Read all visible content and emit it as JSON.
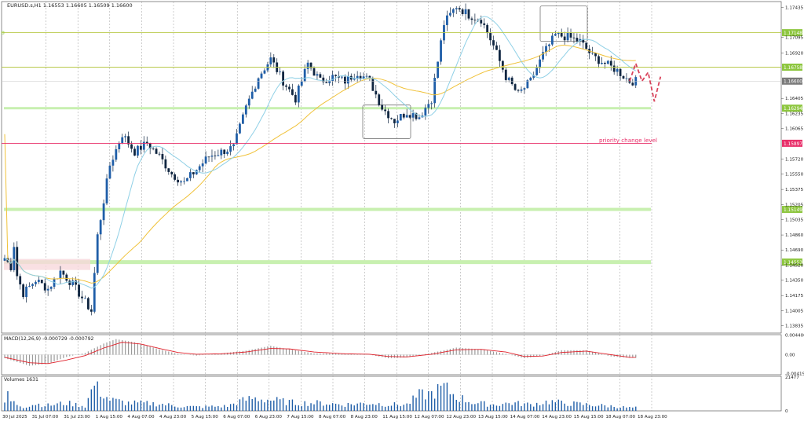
{
  "header": {
    "main_title": "EURUSD.s,H1  1.16553 1.16605 1.16509 1.16600",
    "macd_title": "MACD(12,26,9) -0.000729 -0.000792",
    "volume_title": "Volumes 1631"
  },
  "colors": {
    "background": "#ffffff",
    "grid": "#9a9a9a",
    "bull_candle": "#1f5ea8",
    "bear_candle": "#0f2540",
    "ma_fast": "#8fd0e6",
    "ma_slow": "#f0c23a",
    "level_line": "#8dc63f",
    "zone_fill": "#c8f0b0",
    "priority_line": "#e8306a",
    "projection": "#d9435b",
    "current_price_tag": "#7a7a7a",
    "macd_signal": "#e0202a",
    "macd_hist": "#9a9a9a",
    "volume_bar": "#1f5ea8"
  },
  "chart_data": {
    "type": "candlestick",
    "symbol": "EURUSD.s",
    "timeframe": "H1",
    "ohlc_current": {
      "open": 1.16553,
      "high": 1.16605,
      "low": 1.16509,
      "close": 1.166
    },
    "ylim": [
      1.1375,
      1.175
    ],
    "y_ticks": [
      "1.17435",
      "1.17095",
      "1.16920",
      "1.16405",
      "1.16235",
      "1.16065",
      "1.15720",
      "1.15550",
      "1.15375",
      "1.15205",
      "1.15035",
      "1.14860",
      "1.14690",
      "1.14520",
      "1.14350",
      "1.14175",
      "1.14005",
      "1.13835"
    ],
    "x_ticks": [
      "30 Jul 2025",
      "31 Jul 07:00",
      "31 Jul 23:00",
      "1 Aug 15:00",
      "4 Aug 07:00",
      "4 Aug 23:00",
      "5 Aug 15:00",
      "6 Aug 07:00",
      "6 Aug 23:00",
      "7 Aug 15:00",
      "8 Aug 07:00",
      "8 Aug 23:00",
      "11 Aug 15:00",
      "12 Aug 07:00",
      "12 Aug 23:00",
      "13 Aug 15:00",
      "14 Aug 07:00",
      "14 Aug 23:00",
      "15 Aug 15:00",
      "18 Aug 07:00",
      "18 Aug 23:00"
    ],
    "price_path": [
      [
        0,
        1.146
      ],
      [
        2,
        1.145
      ],
      [
        3,
        1.1475
      ],
      [
        4,
        1.144
      ],
      [
        6,
        1.142
      ],
      [
        10,
        1.1435
      ],
      [
        14,
        1.1425
      ],
      [
        18,
        1.1445
      ],
      [
        22,
        1.143
      ],
      [
        26,
        1.141
      ],
      [
        28,
        1.14
      ],
      [
        30,
        1.1485
      ],
      [
        34,
        1.1565
      ],
      [
        38,
        1.16
      ],
      [
        42,
        1.158
      ],
      [
        46,
        1.159
      ],
      [
        50,
        1.1575
      ],
      [
        54,
        1.1555
      ],
      [
        58,
        1.1545
      ],
      [
        62,
        1.156
      ],
      [
        66,
        1.1575
      ],
      [
        70,
        1.158
      ],
      [
        74,
        1.1585
      ],
      [
        78,
        1.163
      ],
      [
        82,
        1.1665
      ],
      [
        86,
        1.1685
      ],
      [
        90,
        1.166
      ],
      [
        94,
        1.164
      ],
      [
        98,
        1.168
      ],
      [
        102,
        1.166
      ],
      [
        106,
        1.1665
      ],
      [
        110,
        1.166
      ],
      [
        114,
        1.167
      ],
      [
        118,
        1.166
      ],
      [
        122,
        1.163
      ],
      [
        126,
        1.1615
      ],
      [
        130,
        1.1625
      ],
      [
        134,
        1.162
      ],
      [
        138,
        1.164
      ],
      [
        142,
        1.1725
      ],
      [
        146,
        1.1745
      ],
      [
        150,
        1.1735
      ],
      [
        154,
        1.173
      ],
      [
        158,
        1.17
      ],
      [
        162,
        1.1665
      ],
      [
        166,
        1.1645
      ],
      [
        170,
        1.166
      ],
      [
        174,
        1.169
      ],
      [
        178,
        1.1712
      ],
      [
        182,
        1.171
      ],
      [
        186,
        1.1705
      ],
      [
        190,
        1.1688
      ],
      [
        194,
        1.168
      ],
      [
        198,
        1.1672
      ],
      [
        202,
        1.166
      ]
    ],
    "projection_path": [
      [
        202,
        1.166
      ],
      [
        204,
        1.168
      ],
      [
        206,
        1.166
      ],
      [
        208,
        1.167
      ],
      [
        210,
        1.1637
      ],
      [
        212,
        1.1665
      ]
    ],
    "levels": [
      {
        "price": 1.17148,
        "label": "1.17148",
        "kind": "resistance"
      },
      {
        "price": 1.16758,
        "label": "1.16758",
        "kind": "resistance"
      },
      {
        "price": 1.16294,
        "label": "1.16294",
        "kind": "support-zone"
      },
      {
        "price": 1.15897,
        "label": "1.15897",
        "kind": "priority-change"
      },
      {
        "price": 1.15149,
        "label": "1.15149",
        "kind": "support-zone"
      },
      {
        "price": 1.14553,
        "label": "1.14553",
        "kind": "support-zone"
      }
    ],
    "current_price": {
      "price": 1.166,
      "label": "1.16600"
    },
    "annotations": [
      {
        "text": "priority change level"
      }
    ],
    "macd": {
      "y_ticks": [
        "0.004406",
        "0.00",
        "-0.004199"
      ],
      "ylim": [
        -0.0045,
        0.0045
      ],
      "histogram_path": [
        [
          0,
          -0.0008
        ],
        [
          8,
          -0.0025
        ],
        [
          14,
          -0.002
        ],
        [
          20,
          -0.0005
        ],
        [
          26,
          0.0004
        ],
        [
          32,
          0.0025
        ],
        [
          36,
          0.0035
        ],
        [
          42,
          0.0028
        ],
        [
          50,
          0.0012
        ],
        [
          56,
          0.0002
        ],
        [
          62,
          -0.0002
        ],
        [
          70,
          0.0003
        ],
        [
          78,
          0.0009
        ],
        [
          86,
          0.002
        ],
        [
          92,
          0.0012
        ],
        [
          100,
          0.0003
        ],
        [
          110,
          0.0002
        ],
        [
          118,
          0.0
        ],
        [
          124,
          -0.0008
        ],
        [
          130,
          -0.0006
        ],
        [
          138,
          0.0004
        ],
        [
          146,
          0.0016
        ],
        [
          154,
          0.0012
        ],
        [
          162,
          0.0002
        ],
        [
          168,
          -0.0008
        ],
        [
          174,
          -0.0002
        ],
        [
          180,
          0.001
        ],
        [
          188,
          0.001
        ],
        [
          196,
          -0.0004
        ],
        [
          202,
          -0.0007
        ]
      ],
      "signal_path": [
        [
          0,
          -0.0006
        ],
        [
          8,
          -0.0018
        ],
        [
          14,
          -0.002
        ],
        [
          20,
          -0.0012
        ],
        [
          26,
          -0.0002
        ],
        [
          32,
          0.0015
        ],
        [
          38,
          0.0028
        ],
        [
          44,
          0.0024
        ],
        [
          50,
          0.0014
        ],
        [
          56,
          0.0005
        ],
        [
          62,
          0.0001
        ],
        [
          70,
          0.0002
        ],
        [
          78,
          0.0006
        ],
        [
          86,
          0.0014
        ],
        [
          92,
          0.0013
        ],
        [
          100,
          0.0006
        ],
        [
          110,
          0.0002
        ],
        [
          118,
          0.0001
        ],
        [
          124,
          -0.0004
        ],
        [
          130,
          -0.0005
        ],
        [
          138,
          0.0001
        ],
        [
          146,
          0.0011
        ],
        [
          154,
          0.0012
        ],
        [
          162,
          0.0006
        ],
        [
          168,
          -0.0004
        ],
        [
          174,
          -0.0003
        ],
        [
          180,
          0.0005
        ],
        [
          188,
          0.0008
        ],
        [
          196,
          0.0
        ],
        [
          202,
          -0.0006
        ]
      ]
    },
    "volume": {
      "y_ticks": [
        "21477",
        "0"
      ],
      "ylim": [
        0,
        22000
      ],
      "profile_path": [
        [
          0,
          4000
        ],
        [
          1,
          12000
        ],
        [
          2,
          6000
        ],
        [
          6,
          2500
        ],
        [
          10,
          4500
        ],
        [
          14,
          3500
        ],
        [
          20,
          5000
        ],
        [
          26,
          3000
        ],
        [
          29,
          17000
        ],
        [
          30,
          14000
        ],
        [
          34,
          7000
        ],
        [
          40,
          5000
        ],
        [
          50,
          4500
        ],
        [
          56,
          3000
        ],
        [
          62,
          2500
        ],
        [
          72,
          3000
        ],
        [
          76,
          6000
        ],
        [
          80,
          8000
        ],
        [
          86,
          7000
        ],
        [
          94,
          5000
        ],
        [
          102,
          5000
        ],
        [
          110,
          4000
        ],
        [
          118,
          5000
        ],
        [
          124,
          4000
        ],
        [
          130,
          4000
        ],
        [
          134,
          10000
        ],
        [
          138,
          11000
        ],
        [
          142,
          15000
        ],
        [
          146,
          9000
        ],
        [
          152,
          5000
        ],
        [
          158,
          4000
        ],
        [
          164,
          5000
        ],
        [
          170,
          4000
        ],
        [
          176,
          6000
        ],
        [
          180,
          5000
        ],
        [
          188,
          4000
        ],
        [
          196,
          3000
        ],
        [
          202,
          2000
        ]
      ]
    }
  }
}
